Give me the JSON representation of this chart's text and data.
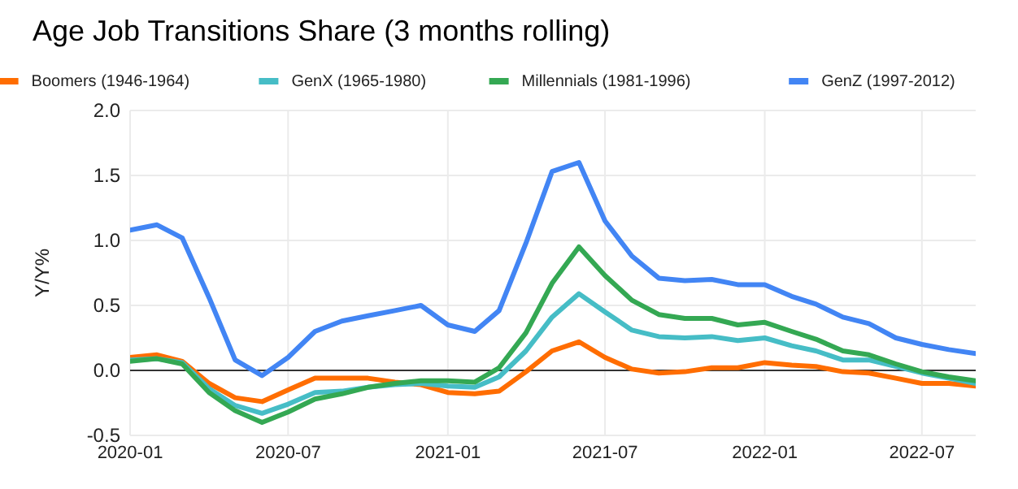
{
  "chart_data": {
    "type": "line",
    "title": "Age Job Transitions Share (3 months rolling)",
    "ylabel": "Y/Y%",
    "x": [
      "2020-01",
      "2020-02",
      "2020-03",
      "2020-04",
      "2020-05",
      "2020-06",
      "2020-07",
      "2020-08",
      "2020-09",
      "2020-10",
      "2020-11",
      "2020-12",
      "2021-01",
      "2021-02",
      "2021-03",
      "2021-04",
      "2021-05",
      "2021-06",
      "2021-07",
      "2021-08",
      "2021-09",
      "2021-10",
      "2021-11",
      "2021-12",
      "2022-01",
      "2022-02",
      "2022-03",
      "2022-04",
      "2022-05",
      "2022-06",
      "2022-07",
      "2022-08",
      "2022-09"
    ],
    "series": [
      {
        "name": "Boomers (1946-1964)",
        "color": "#ff6d01",
        "values": [
          0.1,
          0.12,
          0.07,
          -0.1,
          -0.21,
          -0.24,
          -0.15,
          -0.06,
          -0.06,
          -0.06,
          -0.09,
          -0.11,
          -0.17,
          -0.18,
          -0.16,
          -0.01,
          0.15,
          0.22,
          0.1,
          0.01,
          -0.02,
          -0.01,
          0.02,
          0.02,
          0.06,
          0.04,
          0.03,
          -0.01,
          -0.02,
          -0.06,
          -0.1,
          -0.1,
          -0.12
        ]
      },
      {
        "name": "GenX (1965-1980)",
        "color": "#46bdc6",
        "values": [
          0.08,
          0.09,
          0.06,
          -0.14,
          -0.27,
          -0.33,
          -0.26,
          -0.17,
          -0.16,
          -0.13,
          -0.11,
          -0.1,
          -0.12,
          -0.13,
          -0.05,
          0.15,
          0.41,
          0.59,
          0.45,
          0.31,
          0.26,
          0.25,
          0.26,
          0.23,
          0.25,
          0.19,
          0.15,
          0.08,
          0.08,
          0.03,
          -0.02,
          -0.06,
          -0.1
        ]
      },
      {
        "name": "Millennials (1981-1996)",
        "color": "#34a853",
        "values": [
          0.07,
          0.09,
          0.05,
          -0.17,
          -0.31,
          -0.4,
          -0.32,
          -0.22,
          -0.18,
          -0.13,
          -0.1,
          -0.08,
          -0.08,
          -0.09,
          0.02,
          0.29,
          0.67,
          0.95,
          0.73,
          0.54,
          0.43,
          0.4,
          0.4,
          0.35,
          0.37,
          0.3,
          0.24,
          0.15,
          0.12,
          0.05,
          -0.01,
          -0.05,
          -0.08
        ]
      },
      {
        "name": "GenZ (1997-2012)",
        "color": "#4285f4",
        "values": [
          1.08,
          1.12,
          1.02,
          0.56,
          0.08,
          -0.04,
          0.1,
          0.3,
          0.38,
          0.42,
          0.46,
          0.5,
          0.35,
          0.3,
          0.46,
          0.98,
          1.53,
          1.6,
          1.15,
          0.88,
          0.71,
          0.69,
          0.7,
          0.66,
          0.66,
          0.57,
          0.51,
          0.41,
          0.36,
          0.25,
          0.2,
          0.16,
          0.13
        ]
      }
    ],
    "xlim": [
      "2020-01",
      "2022-09"
    ],
    "xticks": [
      {
        "value": "2020-01",
        "label": "2020-01"
      },
      {
        "value": "2020-07",
        "label": "2020-07"
      },
      {
        "value": "2021-01",
        "label": "2021-01"
      },
      {
        "value": "2021-07",
        "label": "2021-07"
      },
      {
        "value": "2022-01",
        "label": "2022-01"
      },
      {
        "value": "2022-07",
        "label": "2022-07"
      }
    ],
    "ylim": [
      -0.5,
      2.0
    ],
    "yticks": [
      {
        "value": -0.5,
        "label": "-0.5"
      },
      {
        "value": 0,
        "label": "0.0"
      },
      {
        "value": 0.5,
        "label": "0.5"
      },
      {
        "value": 1,
        "label": "1.0"
      },
      {
        "value": 1.5,
        "label": "1.5"
      },
      {
        "value": 2,
        "label": "2.0"
      }
    ],
    "grid": true,
    "legend": "top",
    "marker": "none",
    "line_style": "solid"
  }
}
